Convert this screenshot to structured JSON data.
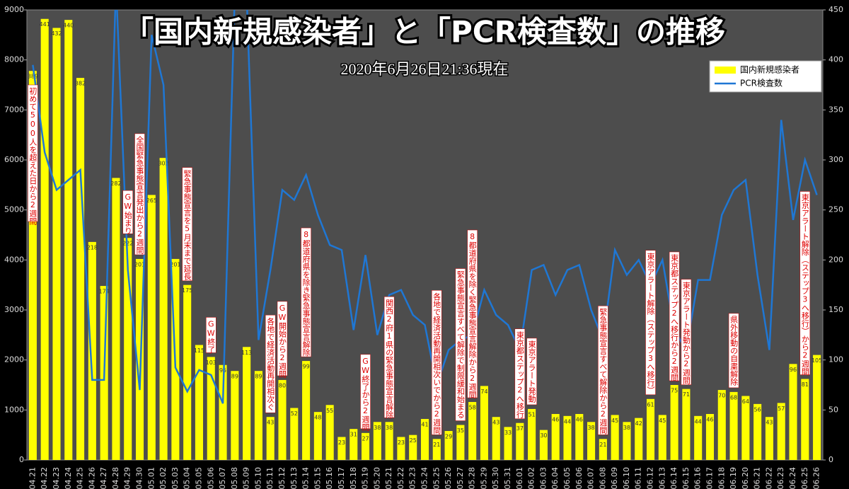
{
  "chart_data": {
    "type": "bar-line",
    "title": "「国内新規感染者」と「PCR検査数」の推移",
    "subtitle": "2020年6月26日21:36現在",
    "categories": [
      "04.21",
      "04.22",
      "04.23",
      "04.24",
      "04.25",
      "04.26",
      "04.27",
      "04.28",
      "04.29",
      "04.30",
      "05.01",
      "05.02",
      "05.03",
      "05.04",
      "05.05",
      "05.06",
      "05.07",
      "05.08",
      "05.09",
      "05.10",
      "05.11",
      "05.12",
      "05.13",
      "05.14",
      "05.15",
      "05.16",
      "05.17",
      "05.18",
      "05.19",
      "05.20",
      "05.21",
      "05.22",
      "05.23",
      "05.24",
      "05.25",
      "05.26",
      "05.27",
      "05.28",
      "05.29",
      "05.30",
      "05.31",
      "06.01",
      "06.02",
      "06.03",
      "06.04",
      "06.05",
      "06.06",
      "06.07",
      "06.08",
      "06.09",
      "06.10",
      "06.11",
      "06.12",
      "06.13",
      "06.14",
      "06.15",
      "06.16",
      "06.17",
      "06.18",
      "06.19",
      "06.20",
      "06.21",
      "06.22",
      "06.23",
      "06.24",
      "06.25",
      "06.26"
    ],
    "series": [
      {
        "name": "国内新規感染者",
        "kind": "bar",
        "axis": "y2",
        "color": "#ffff00",
        "values": [
          389,
          441,
          432,
          440,
          382,
          218,
          174,
          282,
          222,
          201,
          265,
          302,
          201,
          175,
          115,
          103,
          95,
          89,
          113,
          89,
          43,
          80,
          52,
          99,
          48,
          55,
          23,
          31,
          27,
          38,
          38,
          23,
          25,
          41,
          21,
          29,
          35,
          58,
          74,
          43,
          33,
          37,
          51,
          30,
          46,
          44,
          46,
          38,
          21,
          45,
          38,
          42,
          61,
          45,
          75,
          71,
          44,
          46,
          70,
          68,
          64,
          56,
          43,
          57,
          96,
          81,
          105
        ]
      },
      {
        "name": "PCR検査数",
        "kind": "line",
        "axis": "y",
        "color": "#1f77d4",
        "values": [
          7900,
          6150,
          5400,
          5600,
          5800,
          1600,
          1600,
          9500,
          3800,
          1400,
          8500,
          7500,
          1850,
          1370,
          1800,
          1700,
          1130,
          9300,
          9300,
          2400,
          3800,
          5400,
          5200,
          5700,
          4900,
          4300,
          4200,
          2600,
          4100,
          2500,
          3300,
          3400,
          2900,
          2700,
          1500,
          2200,
          2400,
          2500,
          3400,
          2900,
          2700,
          2200,
          3800,
          3900,
          3300,
          3800,
          3900,
          3000,
          2400,
          4200,
          3700,
          4000,
          3500,
          4000,
          2600,
          2200,
          3600,
          3600,
          4900,
          5400,
          5600,
          3700,
          2200,
          6800,
          4800,
          6000,
          5300
        ]
      }
    ],
    "ylim": [
      0,
      9000
    ],
    "yticks": [
      0,
      1000,
      2000,
      3000,
      4000,
      5000,
      6000,
      7000,
      8000,
      9000
    ],
    "y2lim": [
      0,
      450
    ],
    "y2ticks": [
      0,
      50,
      100,
      150,
      200,
      250,
      300,
      350,
      400,
      450
    ],
    "annotations": [
      {
        "date": "04.21",
        "text": "初めて500人を超えた日から2週間"
      },
      {
        "date": "04.29",
        "text": "GW始まり"
      },
      {
        "date": "04.30",
        "text": "全国緊急事態宣言発出から2週間"
      },
      {
        "date": "05.04",
        "text": "緊急事態宣言を5月末まで延長"
      },
      {
        "date": "05.06",
        "text": "GW終了"
      },
      {
        "date": "05.11",
        "text": "各地で経済活動再開相次ぐ"
      },
      {
        "date": "05.12",
        "text": "GW開始から2週間"
      },
      {
        "date": "05.14",
        "text": "8都道府県を除き緊急事態宣言解除"
      },
      {
        "date": "05.19",
        "text": "GW終了から2週間"
      },
      {
        "date": "05.21",
        "text": "関西2府1県の緊急事態宣言解除"
      },
      {
        "date": "05.25",
        "text": "各地で経済活動再開相次いでから2週間"
      },
      {
        "date": "05.27",
        "text": "緊急事態宣言すべて解除で制限緩和始まる"
      },
      {
        "date": "05.28",
        "text": "8都道府県を除く緊急事態宣言解除から2週間"
      },
      {
        "date": "06.01",
        "text": "東京都ステップ2へ移行"
      },
      {
        "date": "06.02",
        "text": "東京アラート発動"
      },
      {
        "date": "06.08",
        "text": "緊急事態宣言すべて解除から2週間"
      },
      {
        "date": "06.12",
        "text": "東京アラート解除（ステップ3へ移行）"
      },
      {
        "date": "06.14",
        "text": "東京都ステップ2へ移行から2週間"
      },
      {
        "date": "06.15",
        "text": "東京アラート発動から2週間"
      },
      {
        "date": "06.19",
        "text": "県外移動の自粛解除"
      },
      {
        "date": "06.25",
        "text": "東京アラート解除（ステップ3へ移行）から2週間"
      }
    ]
  }
}
